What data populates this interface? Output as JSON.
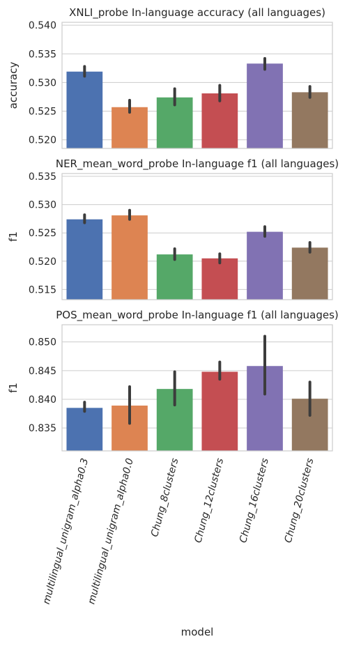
{
  "chart_data": [
    {
      "type": "bar",
      "title": "XNLI_probe In-language accuracy (all languages)",
      "xlabel": "",
      "ylabel": "accuracy",
      "ylim": [
        0.5185,
        0.5405
      ],
      "yticks": [
        0.52,
        0.525,
        0.53,
        0.535,
        0.54
      ],
      "categories": [
        "multilingual_unigram_alpha0.3",
        "multilingual_unigram_alpha0.0",
        "Chung_8clusters",
        "Chung_12clusters",
        "Chung_16clusters",
        "Chung_20clusters"
      ],
      "values": [
        0.5319,
        0.5257,
        0.5274,
        0.5281,
        0.5333,
        0.5283
      ],
      "error_low": [
        0.5311,
        0.5248,
        0.5261,
        0.5268,
        0.5323,
        0.5274
      ],
      "error_high": [
        0.5328,
        0.5269,
        0.5289,
        0.5295,
        0.5342,
        0.5293
      ],
      "colors": [
        "#4c72b0",
        "#dd8452",
        "#55a868",
        "#c44e52",
        "#8172b3",
        "#937860"
      ],
      "grid": true
    },
    {
      "type": "bar",
      "title": "NER_mean_word_probe In-language f1 (all languages)",
      "xlabel": "",
      "ylabel": "f1",
      "ylim": [
        0.5132,
        0.5355
      ],
      "yticks": [
        0.515,
        0.52,
        0.525,
        0.53,
        0.535
      ],
      "categories": [
        "multilingual_unigram_alpha0.3",
        "multilingual_unigram_alpha0.0",
        "Chung_8clusters",
        "Chung_12clusters",
        "Chung_16clusters",
        "Chung_20clusters"
      ],
      "values": [
        0.5274,
        0.5281,
        0.5212,
        0.5205,
        0.5252,
        0.5224
      ],
      "error_low": [
        0.5268,
        0.5274,
        0.5203,
        0.5197,
        0.5244,
        0.5216
      ],
      "error_high": [
        0.5282,
        0.529,
        0.5222,
        0.5213,
        0.5261,
        0.5233
      ],
      "colors": [
        "#4c72b0",
        "#dd8452",
        "#55a868",
        "#c44e52",
        "#8172b3",
        "#937860"
      ],
      "grid": true
    },
    {
      "type": "bar",
      "title": "POS_mean_word_probe In-language f1 (all languages)",
      "xlabel": "model",
      "ylabel": "f1",
      "ylim": [
        0.831,
        0.853
      ],
      "yticks": [
        0.835,
        0.84,
        0.845,
        0.85
      ],
      "categories": [
        "multilingual_unigram_alpha0.3",
        "multilingual_unigram_alpha0.0",
        "Chung_8clusters",
        "Chung_12clusters",
        "Chung_16clusters",
        "Chung_20clusters"
      ],
      "values": [
        0.8385,
        0.8389,
        0.8418,
        0.8448,
        0.8458,
        0.8401
      ],
      "error_low": [
        0.8379,
        0.8358,
        0.839,
        0.8435,
        0.8409,
        0.8372
      ],
      "error_high": [
        0.8395,
        0.8422,
        0.8448,
        0.8465,
        0.851,
        0.843
      ],
      "colors": [
        "#4c72b0",
        "#dd8452",
        "#55a868",
        "#c44e52",
        "#8172b3",
        "#937860"
      ],
      "grid": true
    }
  ]
}
